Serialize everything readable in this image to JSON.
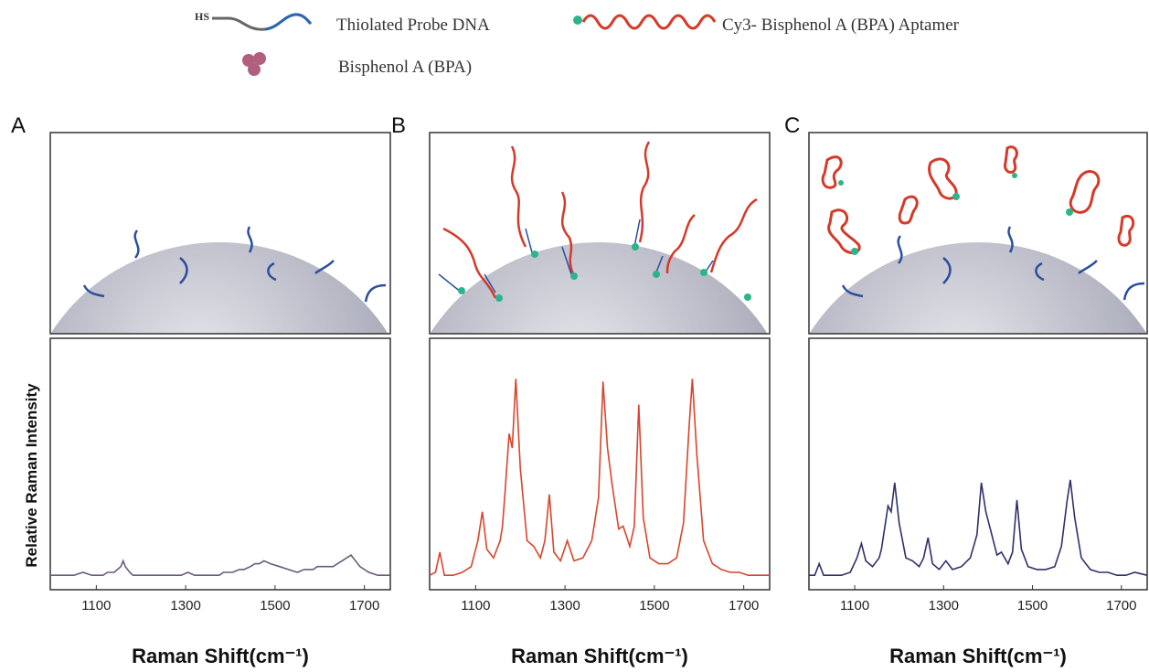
{
  "legend": {
    "hs_label": "HS",
    "items": [
      "Thiolated Probe DNA",
      "Cy3- Bisphenol A (BPA) Aptamer",
      "Bisphenol A (BPA)"
    ]
  },
  "chart_data": [
    {
      "type": "line",
      "panel_label": "A",
      "ylabel": "Relative Raman Intensity",
      "xlabel": "Raman Shift(cm⁻¹)",
      "xlim": [
        997,
        1758
      ],
      "xticks": [
        1100,
        1300,
        1500,
        1700
      ],
      "ylim": [
        13,
        100
      ],
      "x": [
        997,
        1010,
        1020,
        1030,
        1050,
        1070,
        1090,
        1105,
        1115,
        1125,
        1140,
        1155,
        1160,
        1165,
        1175,
        1182,
        1190,
        1200,
        1215,
        1230,
        1245,
        1255,
        1265,
        1275,
        1290,
        1305,
        1320,
        1340,
        1360,
        1375,
        1385,
        1395,
        1405,
        1420,
        1430,
        1445,
        1455,
        1465,
        1475,
        1490,
        1510,
        1530,
        1550,
        1565,
        1578,
        1585,
        1595,
        1610,
        1630,
        1650,
        1670,
        1690,
        1710,
        1730,
        1758
      ],
      "series": [
        {
          "color": "#6b5a7a",
          "values": [
            18,
            18,
            18,
            18,
            18,
            19,
            18,
            18,
            18,
            19,
            19,
            21,
            23,
            21,
            19,
            18,
            18,
            18,
            18,
            18,
            18,
            18,
            18,
            18,
            18,
            19,
            18,
            18,
            18,
            18,
            19,
            19,
            19,
            20,
            20,
            21,
            22,
            22,
            23,
            22,
            21,
            20,
            19,
            20,
            20,
            20,
            21,
            21,
            21,
            23,
            25,
            21,
            19,
            18,
            18
          ]
        }
      ]
    },
    {
      "type": "line",
      "panel_label": "B",
      "xlabel": "Raman Shift(cm⁻¹)",
      "xlim": [
        997,
        1758
      ],
      "xticks": [
        1100,
        1300,
        1500,
        1700
      ],
      "ylim": [
        13,
        100
      ],
      "x": [
        997,
        1010,
        1020,
        1030,
        1050,
        1070,
        1090,
        1105,
        1115,
        1125,
        1140,
        1155,
        1160,
        1165,
        1175,
        1182,
        1190,
        1200,
        1215,
        1230,
        1245,
        1255,
        1265,
        1275,
        1290,
        1305,
        1320,
        1340,
        1360,
        1375,
        1385,
        1395,
        1405,
        1420,
        1430,
        1445,
        1455,
        1465,
        1475,
        1490,
        1510,
        1530,
        1550,
        1565,
        1578,
        1585,
        1595,
        1610,
        1630,
        1650,
        1670,
        1690,
        1710,
        1730,
        1758
      ],
      "series": [
        {
          "color": "#d9442c",
          "values": [
            18,
            19,
            26,
            18,
            18,
            19,
            21,
            30,
            40,
            27,
            24,
            30,
            35,
            45,
            67,
            62,
            86,
            55,
            30,
            28,
            24,
            30,
            46,
            26,
            23,
            30,
            23,
            24,
            30,
            45,
            85,
            62,
            50,
            34,
            35,
            28,
            35,
            77,
            38,
            24,
            22,
            22,
            24,
            36,
            70,
            86,
            60,
            30,
            22,
            20,
            19,
            19,
            18,
            18,
            18
          ]
        }
      ]
    },
    {
      "type": "line",
      "panel_label": "C",
      "xlabel": "Raman Shift(cm⁻¹)",
      "xlim": [
        997,
        1758
      ],
      "xticks": [
        1100,
        1300,
        1500,
        1700
      ],
      "ylim": [
        13,
        100
      ],
      "x": [
        997,
        1010,
        1020,
        1030,
        1050,
        1070,
        1090,
        1105,
        1115,
        1125,
        1140,
        1155,
        1160,
        1165,
        1175,
        1182,
        1190,
        1200,
        1215,
        1230,
        1245,
        1255,
        1265,
        1275,
        1290,
        1305,
        1320,
        1340,
        1360,
        1375,
        1385,
        1395,
        1405,
        1420,
        1430,
        1445,
        1455,
        1465,
        1475,
        1490,
        1510,
        1530,
        1550,
        1565,
        1578,
        1585,
        1595,
        1610,
        1630,
        1650,
        1670,
        1690,
        1710,
        1730,
        1758
      ],
      "series": [
        {
          "color": "#2e3168",
          "values": [
            18,
            18,
            22,
            18,
            18,
            18,
            19,
            24,
            29,
            23,
            21,
            24,
            27,
            32,
            42,
            40,
            50,
            36,
            24,
            23,
            21,
            24,
            31,
            22,
            20,
            23,
            20,
            21,
            24,
            32,
            50,
            40,
            34,
            25,
            26,
            22,
            26,
            44,
            27,
            21,
            20,
            20,
            21,
            28,
            44,
            51,
            38,
            24,
            20,
            19,
            19,
            18,
            18,
            19,
            18
          ]
        }
      ]
    }
  ]
}
